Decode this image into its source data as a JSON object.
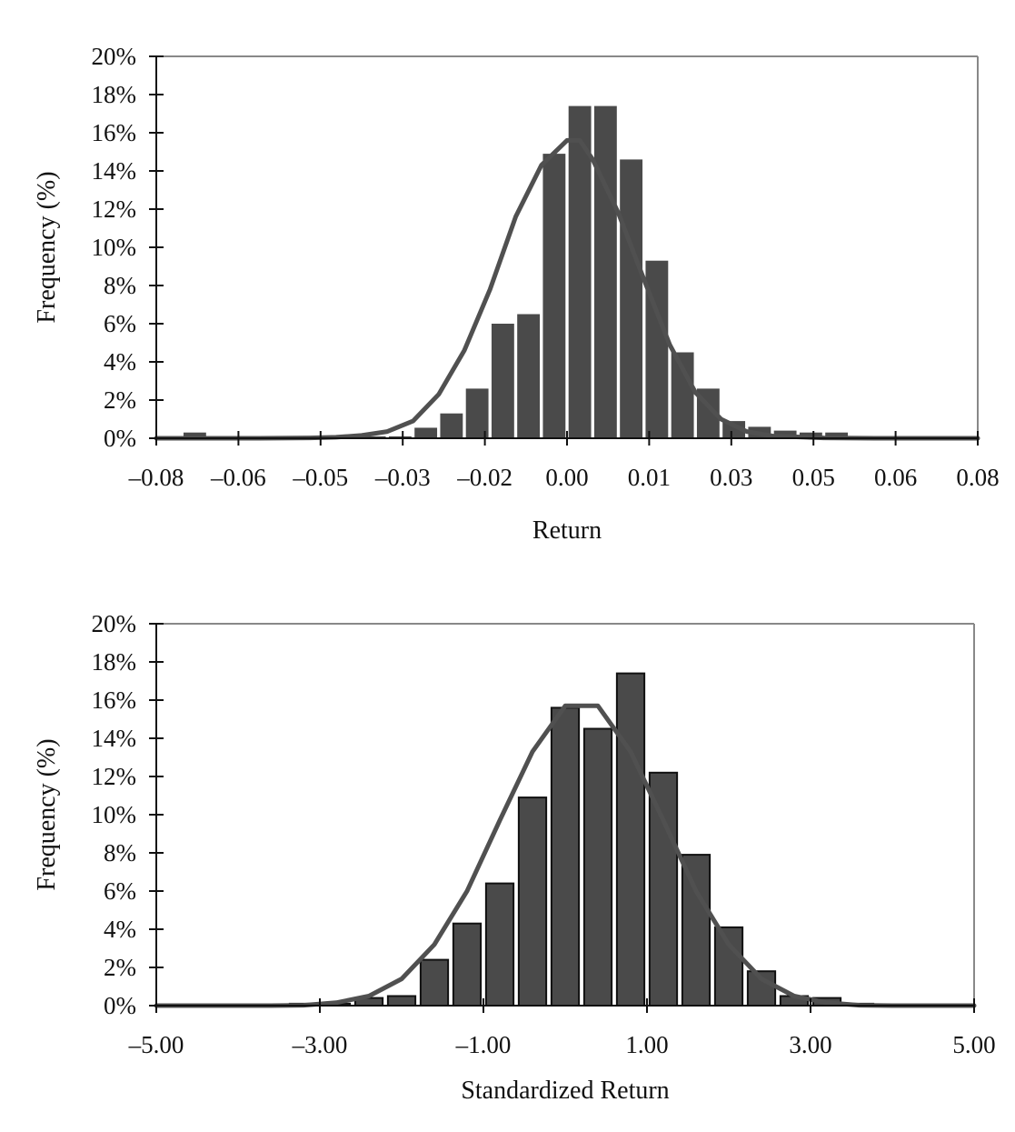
{
  "caption_fragment": "",
  "colors": {
    "bar": "#4a4a4a",
    "curve": "#505050",
    "frame": "#888888",
    "axis": "#111111"
  },
  "chart_data": [
    {
      "type": "bar",
      "xlabel": "Return",
      "ylabel": "Frequency (%)",
      "ylim": [
        0,
        20
      ],
      "y_ticks": [
        "0%",
        "2%",
        "4%",
        "6%",
        "8%",
        "10%",
        "12%",
        "14%",
        "16%",
        "18%",
        "20%"
      ],
      "x_tick_labels": [
        "–0.08",
        "–0.06",
        "–0.05",
        "–0.03",
        "–0.02",
        "0.00",
        "0.01",
        "0.03",
        "0.05",
        "0.06",
        "0.08"
      ],
      "xlim": [
        -0.08,
        0.08
      ],
      "bin_width": 0.005,
      "bars_x": [
        -0.0775,
        -0.0725,
        -0.0675,
        -0.0625,
        -0.0575,
        -0.0525,
        -0.0475,
        -0.0425,
        -0.0375,
        -0.0325,
        -0.0275,
        -0.0225,
        -0.0175,
        -0.0125,
        -0.0075,
        -0.0025,
        0.0025,
        0.0075,
        0.0125,
        0.0175,
        0.0225,
        0.0275,
        0.0325,
        0.0375,
        0.0425,
        0.0475,
        0.0525,
        0.0575,
        0.0625,
        0.0675,
        0.0725,
        0.0775
      ],
      "bars_y": [
        0.1,
        0.3,
        0.05,
        0.05,
        0.05,
        0.05,
        0.05,
        0.05,
        0.1,
        0.1,
        0.55,
        1.3,
        2.6,
        6.0,
        6.5,
        14.9,
        17.4,
        17.4,
        14.6,
        9.3,
        4.5,
        2.6,
        0.9,
        0.6,
        0.4,
        0.3,
        0.3,
        0.1,
        0.1,
        0.05,
        0.05,
        0.05
      ],
      "series": [
        {
          "type": "line",
          "x": [
            -0.08,
            -0.07,
            -0.06,
            -0.05,
            -0.045,
            -0.04,
            -0.035,
            -0.03,
            -0.025,
            -0.02,
            -0.015,
            -0.01,
            -0.005,
            0.0,
            0.0025,
            0.005,
            0.01,
            0.015,
            0.02,
            0.025,
            0.03,
            0.035,
            0.04,
            0.05,
            0.06,
            0.07,
            0.08
          ],
          "y": [
            0,
            0,
            0,
            0.02,
            0.05,
            0.15,
            0.35,
            0.9,
            2.3,
            4.6,
            7.8,
            11.6,
            14.3,
            15.6,
            15.6,
            14.6,
            11.8,
            8.3,
            4.9,
            2.4,
            1.0,
            0.35,
            0.12,
            0.02,
            0,
            0,
            0
          ]
        }
      ],
      "grid": false
    },
    {
      "type": "bar",
      "xlabel": "Standardized Return",
      "ylabel": "Frequency (%)",
      "ylim": [
        0,
        20
      ],
      "y_ticks": [
        "0%",
        "2%",
        "4%",
        "6%",
        "8%",
        "10%",
        "12%",
        "14%",
        "16%",
        "18%",
        "20%"
      ],
      "x_tick_labels": [
        "–5.00",
        "–3.00",
        "–1.00",
        "1.00",
        "3.00",
        "5.00"
      ],
      "xlim": [
        -5.0,
        5.0
      ],
      "bin_width": 0.4,
      "bars_x": [
        -4.8,
        -4.4,
        -4.0,
        -3.6,
        -3.2,
        -2.8,
        -2.4,
        -2.0,
        -1.6,
        -1.2,
        -0.8,
        -0.4,
        0.0,
        0.4,
        0.8,
        1.2,
        1.6,
        2.0,
        2.4,
        2.8,
        3.2,
        3.6,
        4.0,
        4.4,
        4.8
      ],
      "bars_y": [
        0.05,
        0.0,
        0.0,
        0.05,
        0.1,
        0.1,
        0.4,
        0.5,
        2.4,
        4.3,
        6.4,
        10.9,
        15.6,
        14.5,
        17.4,
        12.2,
        7.9,
        4.1,
        1.8,
        0.5,
        0.4,
        0.1,
        0.05,
        0.0,
        0.0
      ],
      "series": [
        {
          "type": "line",
          "x": [
            -5.0,
            -4.0,
            -3.6,
            -3.2,
            -2.8,
            -2.4,
            -2.0,
            -1.6,
            -1.2,
            -0.8,
            -0.4,
            0.0,
            0.4,
            0.8,
            1.2,
            1.6,
            2.0,
            2.4,
            2.8,
            3.2,
            3.6,
            4.0,
            5.0
          ],
          "y": [
            0,
            0,
            0,
            0.02,
            0.15,
            0.5,
            1.4,
            3.2,
            6.0,
            9.7,
            13.3,
            15.7,
            15.7,
            13.3,
            9.7,
            6.0,
            3.2,
            1.4,
            0.5,
            0.15,
            0.02,
            0,
            0
          ]
        }
      ],
      "grid": false
    }
  ]
}
